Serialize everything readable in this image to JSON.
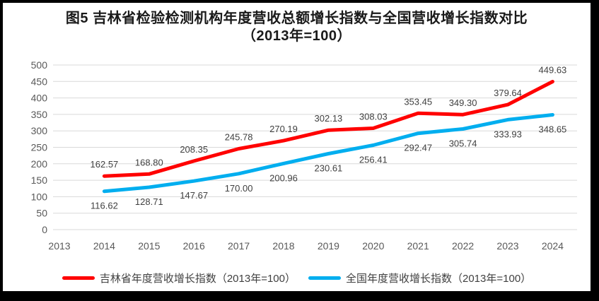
{
  "title": {
    "line1": "图5  吉林省检验检测机构年度营收总额增长指数与全国营收增长指数对比",
    "line2": "（2013年=100）"
  },
  "colors": {
    "jilin_line": "#FF0000",
    "national_line": "#00AEEF",
    "gridline": "#D9D9D9",
    "axis_label": "#595959",
    "data_label": "#404040",
    "frame_border": "#000000"
  },
  "chart_data": {
    "type": "line",
    "title": "图5 吉林省检验检测机构年度营收总额增长指数与全国营收增长指数对比（2013年=100）",
    "categories": [
      "2013",
      "2014",
      "2015",
      "2016",
      "2017",
      "2018",
      "2019",
      "2020",
      "2021",
      "2022",
      "2023",
      "2024"
    ],
    "series": [
      {
        "name": "吉林省年度营收增长指数（2013年=100）",
        "color": "#FF0000",
        "label_position": "above",
        "values": [
          null,
          162.57,
          168.8,
          208.35,
          245.78,
          270.19,
          302.13,
          308.03,
          353.45,
          349.3,
          379.64,
          449.63
        ]
      },
      {
        "name": "全国年度营收增长指数（2013年=100）",
        "color": "#00AEEF",
        "label_position": "below",
        "values": [
          null,
          116.62,
          128.71,
          147.67,
          170.0,
          200.96,
          230.61,
          256.41,
          292.47,
          305.74,
          333.93,
          348.65
        ]
      }
    ],
    "xlabel": "",
    "ylabel": "",
    "ylim": [
      0,
      500
    ],
    "ytick_step": 50,
    "grid": true,
    "legend_position": "bottom"
  }
}
